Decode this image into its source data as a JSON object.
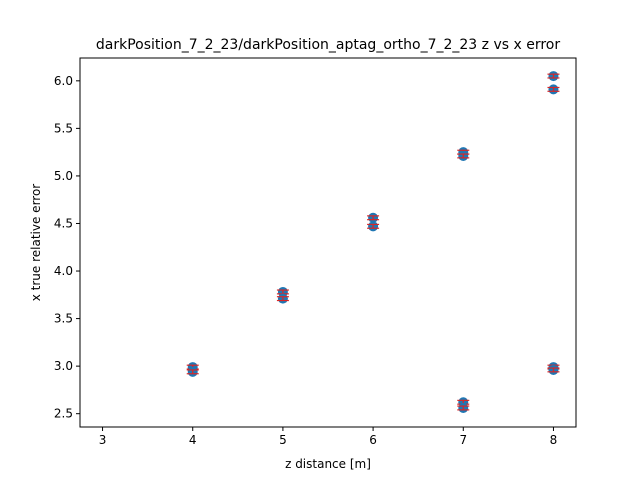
{
  "chart_data": {
    "type": "scatter",
    "title": "darkPosition_7_2_23/darkPosition_aptag_ortho_7_2_23 z vs x error",
    "xlabel": "z distance [m]",
    "ylabel": "x true relative error",
    "xlim": [
      2.75,
      8.25
    ],
    "ylim": [
      2.36,
      6.24
    ],
    "xticks": [
      3,
      4,
      5,
      6,
      7,
      8
    ],
    "yticks": [
      2.5,
      3.0,
      3.5,
      4.0,
      4.5,
      5.0,
      5.5,
      6.0
    ],
    "xtick_labels": [
      "3",
      "4",
      "5",
      "6",
      "7",
      "8"
    ],
    "ytick_labels": [
      "2.5",
      "3.0",
      "3.5",
      "4.0",
      "4.5",
      "5.0",
      "5.5",
      "6.0"
    ],
    "grid": false,
    "marker_color": "#1f77b4",
    "errorbar_color": "#d62728",
    "points": [
      {
        "x": 4,
        "y": 2.99,
        "err": 0.02
      },
      {
        "x": 4,
        "y": 2.94,
        "err": 0.02
      },
      {
        "x": 5,
        "y": 3.78,
        "err": 0.02
      },
      {
        "x": 5,
        "y": 3.71,
        "err": 0.02
      },
      {
        "x": 6,
        "y": 4.56,
        "err": 0.02
      },
      {
        "x": 6,
        "y": 4.47,
        "err": 0.02
      },
      {
        "x": 7,
        "y": 5.25,
        "err": 0.02
      },
      {
        "x": 7,
        "y": 5.21,
        "err": 0.02
      },
      {
        "x": 7,
        "y": 2.62,
        "err": 0.02
      },
      {
        "x": 7,
        "y": 2.56,
        "err": 0.02
      },
      {
        "x": 8,
        "y": 6.05,
        "err": 0.02
      },
      {
        "x": 8,
        "y": 5.91,
        "err": 0.02
      },
      {
        "x": 8,
        "y": 2.99,
        "err": 0.02
      },
      {
        "x": 8,
        "y": 2.96,
        "err": 0.02
      }
    ]
  }
}
